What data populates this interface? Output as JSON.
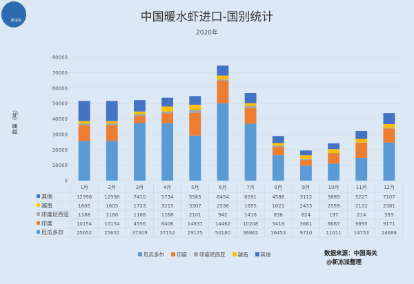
{
  "header": {
    "title": "中国暖水虾进口-国别统计",
    "subtitle": "2020年",
    "logo_text": "新冻派"
  },
  "source": {
    "line1": "数据来源：中国海关",
    "line2": "@新冻派整理"
  },
  "chart_data": {
    "type": "bar",
    "stacked": true,
    "title": "中国暖水虾进口-国别统计",
    "subtitle": "2020年",
    "ylabel": "数量（吨）",
    "ylim": [
      0,
      80000
    ],
    "yticks": [
      0,
      10000,
      20000,
      30000,
      40000,
      50000,
      60000,
      70000,
      80000
    ],
    "grid": true,
    "legend": "bottom",
    "categories": [
      "1月",
      "2月",
      "3月",
      "4月",
      "5月",
      "6月",
      "7月",
      "8月",
      "9月",
      "10月",
      "11月",
      "12月"
    ],
    "series": [
      {
        "name": "厄瓜多尔",
        "color": "#5b9bd5",
        "values": [
          25652,
          25652,
          37309,
          37152,
          29175,
          50180,
          36862,
          16453,
          9710,
          11011,
          14753,
          24688
        ]
      },
      {
        "name": "印度",
        "color": "#ed7d31",
        "values": [
          10154,
          10154,
          4556,
          6406,
          14637,
          14462,
          10208,
          5418,
          3661,
          6667,
          9895,
          9171
        ]
      },
      {
        "name": "印度尼西亚",
        "color": "#a5a5a5",
        "values": [
          1168,
          1168,
          1188,
          1268,
          2101,
          942,
          1416,
          836,
          624,
          197,
          214,
          393
        ]
      },
      {
        "name": "越南",
        "color": "#ffc000",
        "values": [
          1605,
          1605,
          1723,
          3215,
          3307,
          2536,
          1695,
          1621,
          2433,
          2559,
          2122,
          2381
        ]
      },
      {
        "name": "其他",
        "color": "#4472c4",
        "values": [
          12998,
          12998,
          7410,
          5734,
          5585,
          6454,
          6591,
          4586,
          3112,
          3689,
          5227,
          7107
        ]
      }
    ]
  }
}
